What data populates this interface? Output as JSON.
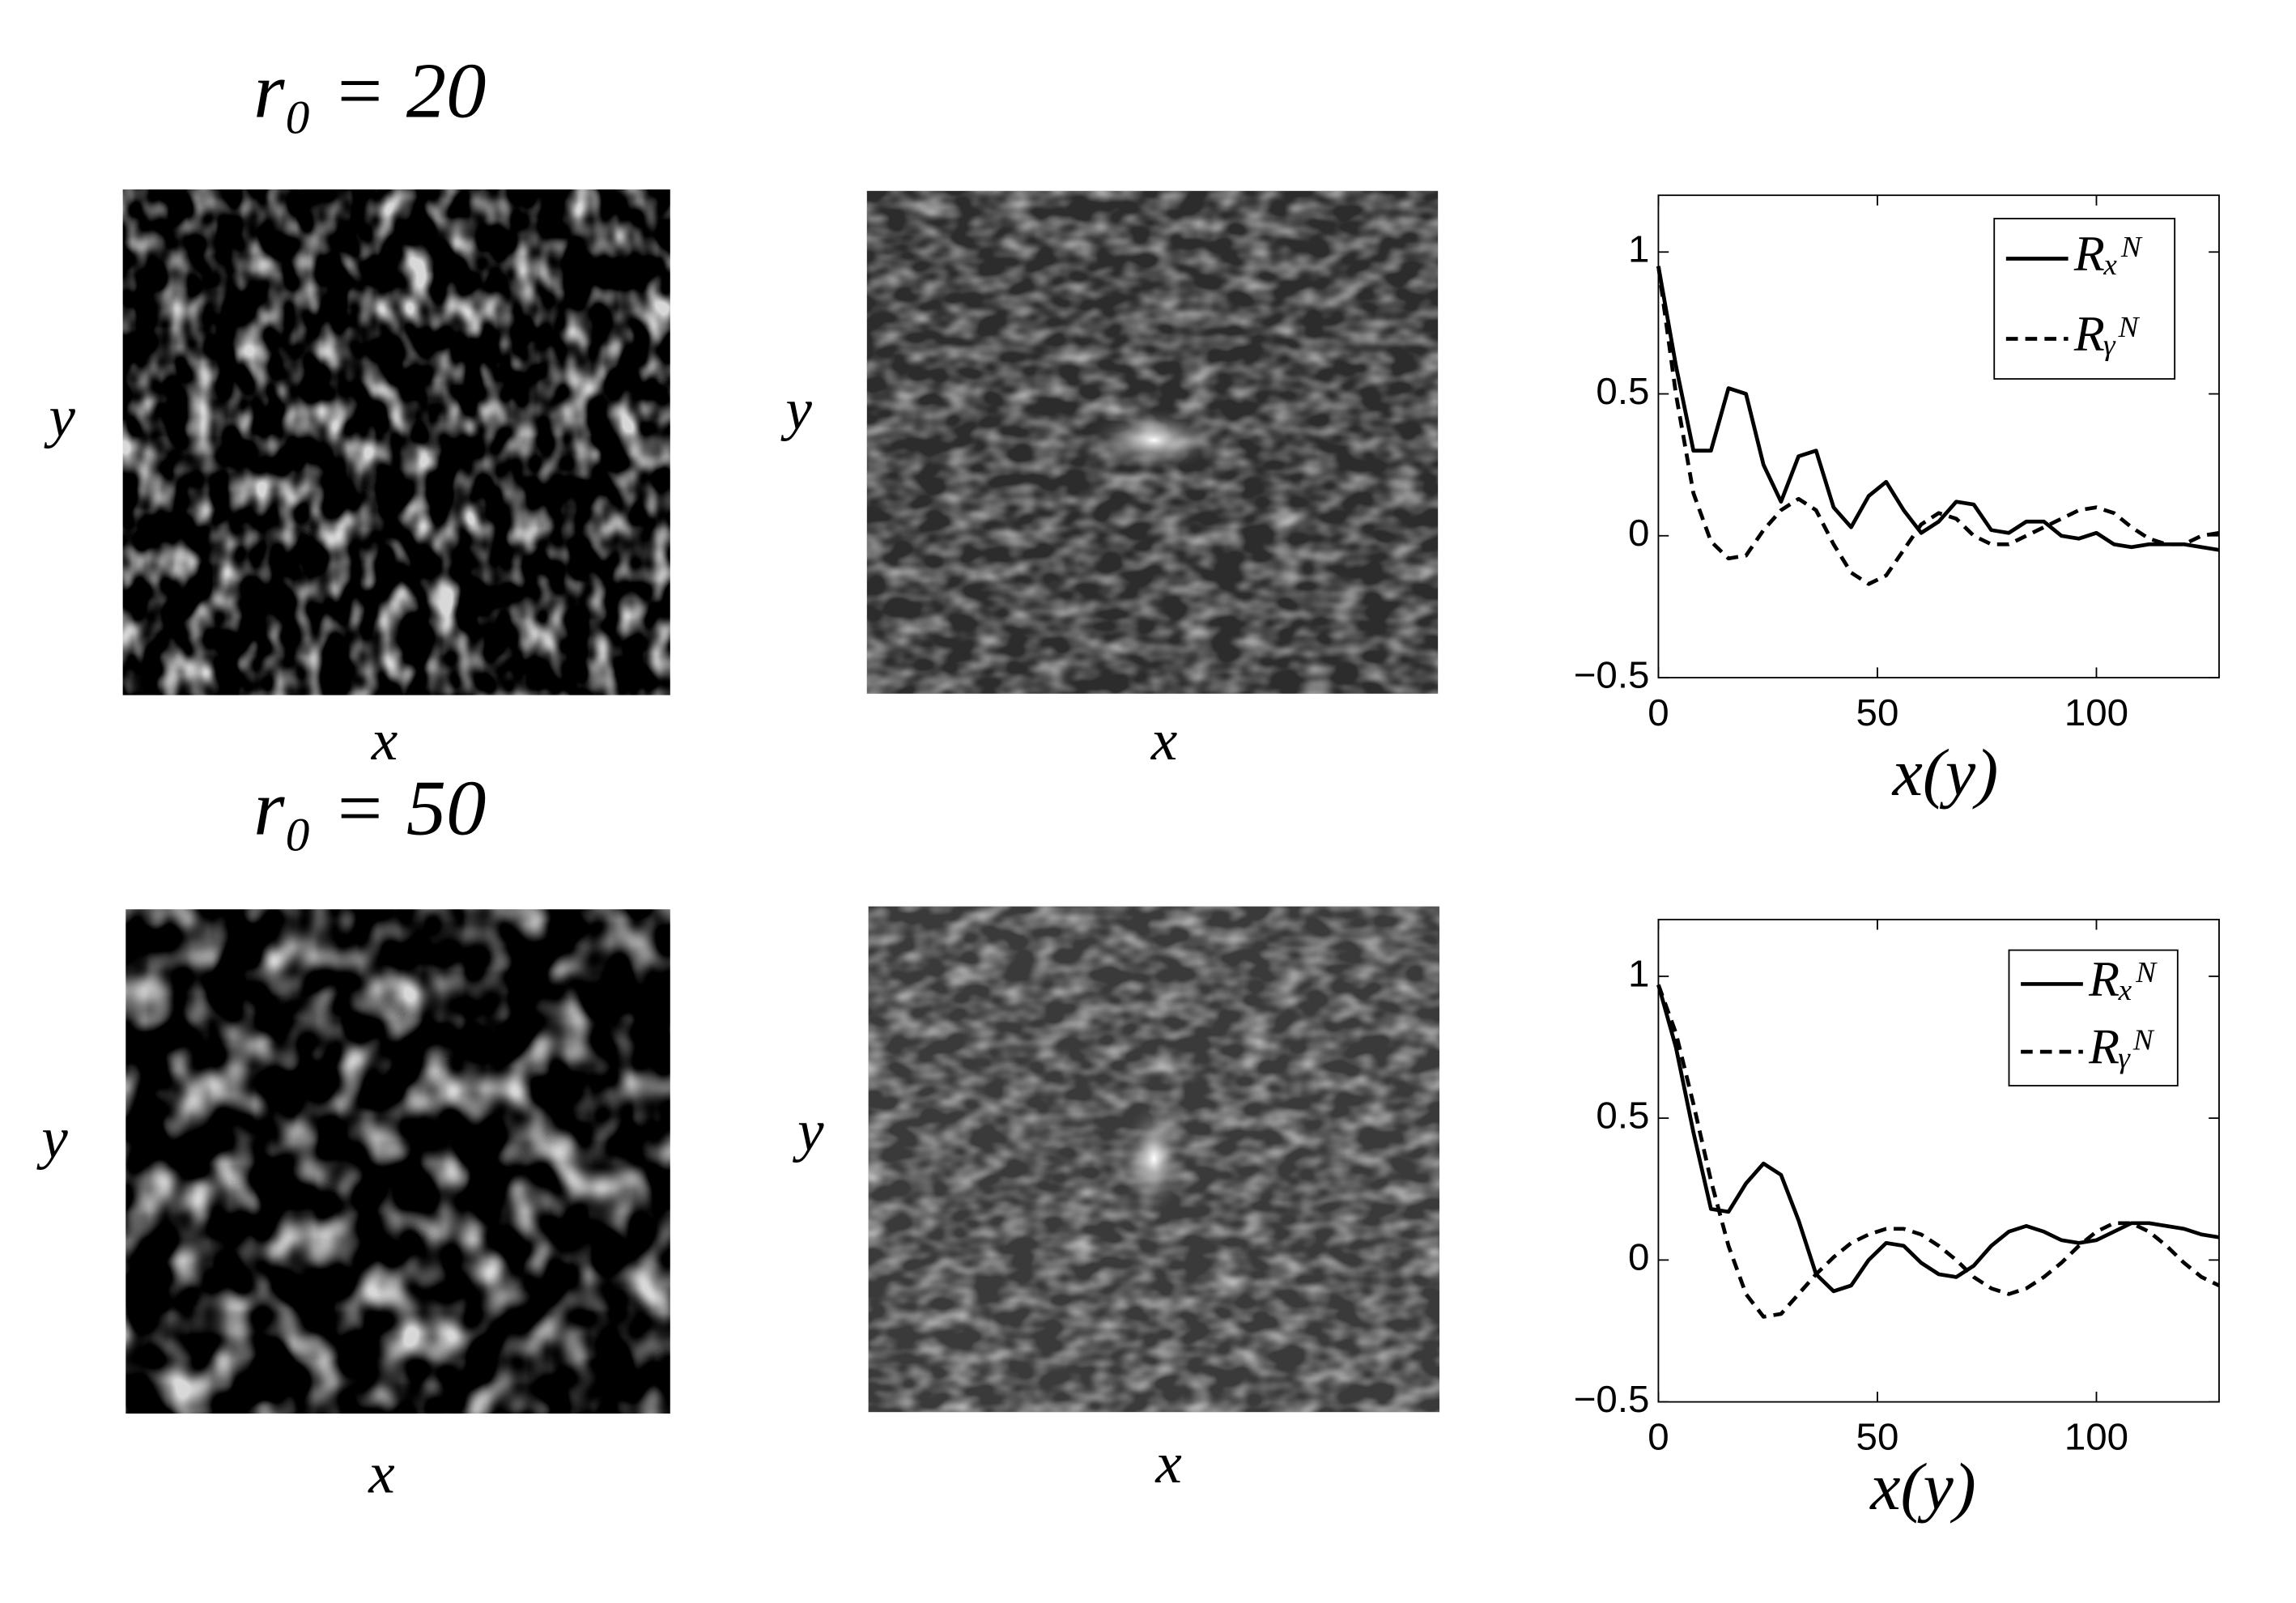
{
  "rows": [
    {
      "title": "r₀ = 20",
      "panels": [
        {
          "xlabel": "x",
          "ylabel": "y"
        },
        {
          "xlabel": "x",
          "ylabel": "y"
        }
      ]
    },
    {
      "title": "r₀ = 50",
      "panels": [
        {
          "xlabel": "x",
          "ylabel": "y"
        },
        {
          "xlabel": "x",
          "ylabel": "y"
        }
      ]
    }
  ],
  "chart_data": [
    {
      "type": "line",
      "xlabel": "x(y)",
      "x": [
        0,
        4,
        8,
        12,
        16,
        20,
        24,
        28,
        32,
        36,
        40,
        44,
        48,
        52,
        56,
        60,
        64,
        68,
        72,
        76,
        80,
        84,
        88,
        92,
        96,
        100,
        104,
        108,
        112,
        116,
        120,
        124,
        128
      ],
      "series": [
        {
          "name": "Rₓᴺ",
          "color": "#000000",
          "dash": "solid",
          "values": [
            0.95,
            0.6,
            0.3,
            0.3,
            0.52,
            0.5,
            0.25,
            0.12,
            0.28,
            0.3,
            0.1,
            0.03,
            0.14,
            0.19,
            0.09,
            0.01,
            0.05,
            0.12,
            0.11,
            0.02,
            0.01,
            0.05,
            0.05,
            0.0,
            -0.01,
            0.01,
            -0.03,
            -0.04,
            -0.03,
            -0.03,
            -0.03,
            -0.04,
            -0.05
          ]
        },
        {
          "name": "Rᵧᴺ",
          "color": "#000000",
          "dash": "dashed",
          "values": [
            0.95,
            0.5,
            0.15,
            -0.02,
            -0.08,
            -0.07,
            0.02,
            0.09,
            0.13,
            0.09,
            -0.03,
            -0.13,
            -0.17,
            -0.14,
            -0.05,
            0.04,
            0.08,
            0.06,
            0.0,
            -0.03,
            -0.03,
            0.0,
            0.03,
            0.06,
            0.09,
            0.1,
            0.08,
            0.03,
            -0.01,
            -0.03,
            -0.03,
            0.0,
            0.01
          ]
        }
      ],
      "xlim": [
        0,
        128
      ],
      "ylim": [
        -0.5,
        1.2
      ],
      "xticks": [
        0,
        50,
        100
      ],
      "yticks": [
        {
          "value": -0.5,
          "label": "−0.5"
        },
        0,
        0.5,
        1
      ],
      "legend": "upper right"
    },
    {
      "type": "line",
      "xlabel": "x(y)",
      "x": [
        0,
        4,
        8,
        12,
        16,
        20,
        24,
        28,
        32,
        36,
        40,
        44,
        48,
        52,
        56,
        60,
        64,
        68,
        72,
        76,
        80,
        84,
        88,
        92,
        96,
        100,
        104,
        108,
        112,
        116,
        120,
        124,
        128
      ],
      "series": [
        {
          "name": "Rₓᴺ",
          "color": "#000000",
          "dash": "solid",
          "values": [
            0.97,
            0.75,
            0.45,
            0.18,
            0.17,
            0.27,
            0.34,
            0.3,
            0.14,
            -0.05,
            -0.11,
            -0.09,
            0.0,
            0.06,
            0.05,
            -0.01,
            -0.05,
            -0.06,
            -0.02,
            0.05,
            0.1,
            0.12,
            0.1,
            0.07,
            0.06,
            0.07,
            0.1,
            0.13,
            0.13,
            0.12,
            0.11,
            0.09,
            0.08
          ]
        },
        {
          "name": "Rᵧᴺ",
          "color": "#000000",
          "dash": "dashed",
          "values": [
            0.97,
            0.8,
            0.55,
            0.28,
            0.05,
            -0.12,
            -0.2,
            -0.19,
            -0.12,
            -0.05,
            0.01,
            0.06,
            0.09,
            0.11,
            0.11,
            0.09,
            0.05,
            0.0,
            -0.06,
            -0.1,
            -0.12,
            -0.1,
            -0.06,
            -0.01,
            0.05,
            0.1,
            0.13,
            0.13,
            0.1,
            0.05,
            -0.01,
            -0.06,
            -0.09
          ]
        }
      ],
      "xlim": [
        0,
        128
      ],
      "ylim": [
        -0.5,
        1.2
      ],
      "xticks": [
        0,
        50,
        100
      ],
      "yticks": [
        {
          "value": -0.5,
          "label": "−0.5"
        },
        0,
        0.5,
        1
      ],
      "legend": "upper right"
    }
  ]
}
